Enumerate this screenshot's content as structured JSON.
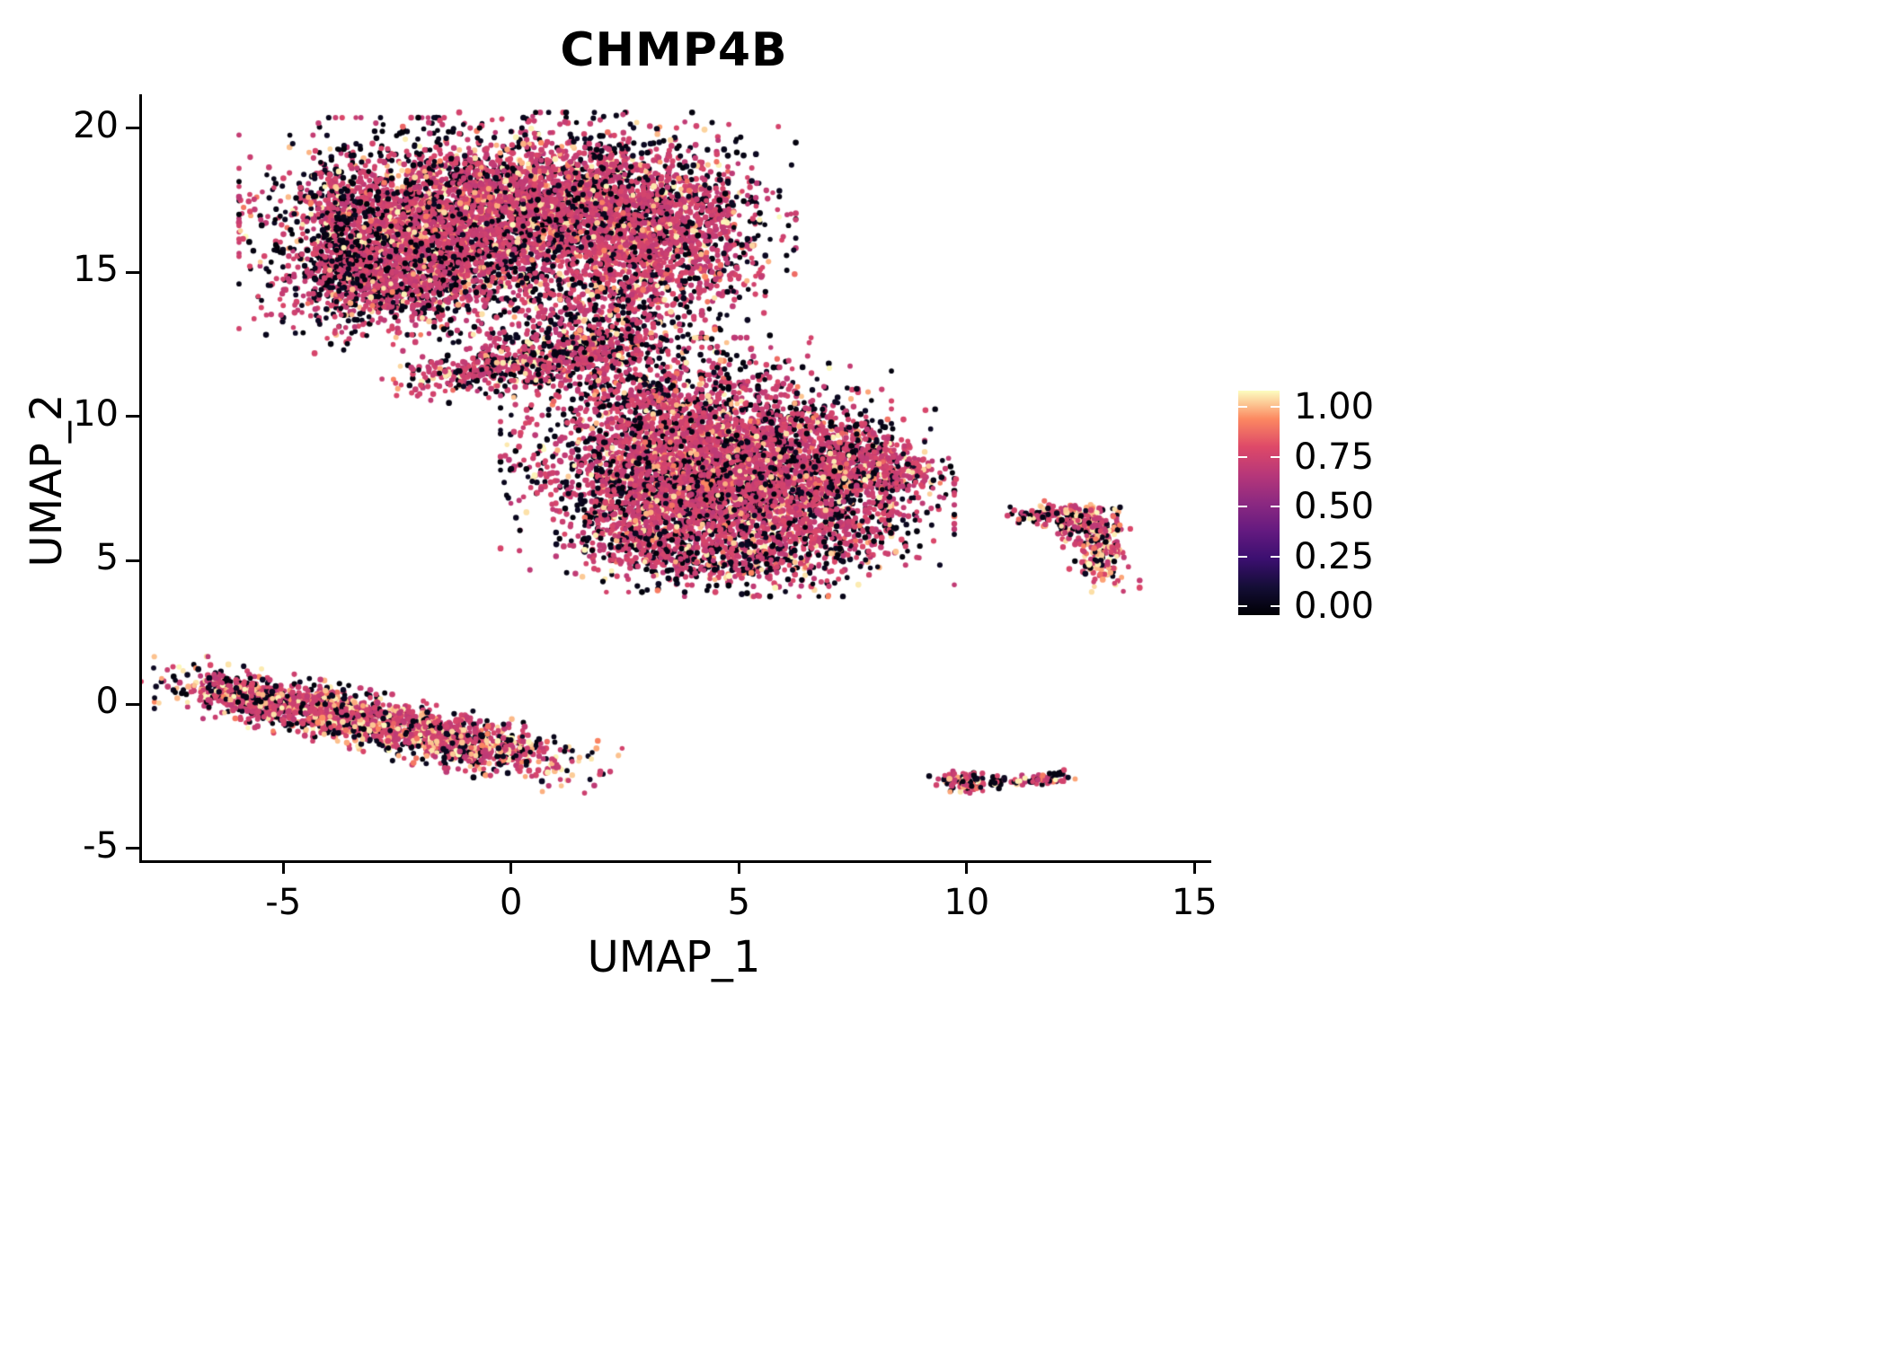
{
  "chart_data": {
    "type": "scatter",
    "title": "CHMP4B",
    "xlabel": "UMAP_1",
    "ylabel": "UMAP_2",
    "xlim": [
      -8.16,
      15.31
    ],
    "ylim": [
      -5.41,
      21.18
    ],
    "x_ticks": [
      -5,
      0,
      5,
      10,
      15
    ],
    "y_ticks": [
      -5,
      0,
      5,
      10,
      15,
      20
    ],
    "grid": false,
    "point_radius_px": [
      2.7,
      3.4
    ],
    "colorbar": {
      "position": "right",
      "colormap": "magma",
      "stops": [
        [
          0,
          "#000004"
        ],
        [
          0.125,
          "#140e36"
        ],
        [
          0.25,
          "#3b0f70"
        ],
        [
          0.375,
          "#641a80"
        ],
        [
          0.5,
          "#8c2981"
        ],
        [
          0.625,
          "#b73779"
        ],
        [
          0.75,
          "#de4968"
        ],
        [
          0.875,
          "#fc8961"
        ],
        [
          1,
          "#fcfdbf"
        ]
      ],
      "tick_labels": [
        "1.00",
        "0.75",
        "0.50",
        "0.25",
        "0.00"
      ],
      "tick_values": [
        1.0,
        0.75,
        0.5,
        0.25,
        0.0
      ]
    },
    "value_bins": {
      "black": [
        0.01,
        0.08
      ],
      "rose": [
        0.64,
        0.74
      ],
      "orange": [
        0.8,
        0.88
      ],
      "cream": [
        0.9,
        1.0
      ]
    },
    "clusters": [
      {
        "x": -2.0,
        "y": 16.6,
        "sx": 1.55,
        "sy": 1.45,
        "rot": 0,
        "n": 2600,
        "mix": {
          "black": 0.13,
          "rose": 0.72,
          "orange": 0.04,
          "cream": 0.11,
          "edge": 0.3
        }
      },
      {
        "x": 0.8,
        "y": 17.3,
        "sx": 1.5,
        "sy": 1.25,
        "rot": 0,
        "n": 2200,
        "mix": {
          "black": 0.13,
          "rose": 0.73,
          "orange": 0.04,
          "cream": 0.1,
          "edge": 0.25
        }
      },
      {
        "x": 3.2,
        "y": 16.3,
        "sx": 1.15,
        "sy": 1.5,
        "rot": 0,
        "n": 1500,
        "mix": {
          "black": 0.15,
          "rose": 0.72,
          "orange": 0.04,
          "cream": 0.09,
          "edge": 0.3
        }
      },
      {
        "x": -2.5,
        "y": 14.5,
        "sx": 1.2,
        "sy": 0.75,
        "rot": 10,
        "n": 650,
        "mix": {
          "black": 0.2,
          "rose": 0.68,
          "orange": 0.03,
          "cream": 0.09,
          "edge": 0.2
        }
      },
      {
        "x": -3.75,
        "y": 15.9,
        "sx": 0.3,
        "sy": 1.3,
        "rot": 0,
        "n": 280,
        "mix": {
          "black": 0.5,
          "rose": 0.38,
          "orange": 0.02,
          "cream": 0.1,
          "edge": 0
        }
      },
      {
        "x": 1.4,
        "y": 13.4,
        "sx": 1.05,
        "sy": 0.95,
        "rot": 0,
        "n": 480,
        "mix": {
          "black": 0.32,
          "rose": 0.58,
          "orange": 0.03,
          "cream": 0.07,
          "edge": 0
        }
      },
      {
        "x": 0.1,
        "y": 11.8,
        "sx": 1.3,
        "sy": 0.38,
        "rot": 12,
        "n": 520,
        "mix": {
          "black": 0.25,
          "rose": 0.64,
          "orange": 0.03,
          "cream": 0.08,
          "edge": 0
        }
      },
      {
        "x": 2.6,
        "y": 11.4,
        "sx": 1.1,
        "sy": 0.9,
        "rot": -20,
        "n": 240,
        "mix": {
          "black": 0.35,
          "rose": 0.55,
          "orange": 0.03,
          "cream": 0.07,
          "edge": 0
        }
      },
      {
        "x": 4.0,
        "y": 8.7,
        "sx": 1.65,
        "sy": 1.55,
        "rot": 0,
        "n": 3100,
        "mix": {
          "black": 0.15,
          "rose": 0.73,
          "orange": 0.04,
          "cream": 0.08,
          "edge": 0.25
        }
      },
      {
        "x": 5.9,
        "y": 7.0,
        "sx": 1.45,
        "sy": 1.25,
        "rot": 0,
        "n": 1700,
        "mix": {
          "black": 0.17,
          "rose": 0.7,
          "orange": 0.04,
          "cream": 0.09,
          "edge": 0.25
        }
      },
      {
        "x": 3.1,
        "y": 6.5,
        "sx": 1.0,
        "sy": 1.0,
        "rot": 0,
        "n": 650,
        "mix": {
          "black": 0.18,
          "rose": 0.7,
          "orange": 0.03,
          "cream": 0.09,
          "edge": 0.2
        }
      },
      {
        "x": 8.3,
        "y": 8.1,
        "sx": 0.55,
        "sy": 0.42,
        "rot": -15,
        "n": 220,
        "mix": {
          "black": 0.2,
          "rose": 0.68,
          "orange": 0.03,
          "cream": 0.09,
          "edge": 0
        }
      },
      {
        "x": 7.2,
        "y": 8.6,
        "sx": 0.7,
        "sy": 0.75,
        "rot": 0,
        "n": 380,
        "mix": {
          "black": 0.18,
          "rose": 0.7,
          "orange": 0.04,
          "cream": 0.08,
          "edge": 0.2
        }
      },
      {
        "x": 4.7,
        "y": 5.0,
        "sx": 1.5,
        "sy": 0.45,
        "rot": 0,
        "n": 330,
        "mix": {
          "black": 0.42,
          "rose": 0.48,
          "orange": 0.02,
          "cream": 0.08,
          "edge": 0
        }
      },
      {
        "x": -4.5,
        "y": -0.15,
        "sx": 1.55,
        "sy": 0.4,
        "rot": -18,
        "n": 950,
        "mix": {
          "black": 0.18,
          "rose": 0.56,
          "orange": 0.06,
          "cream": 0.2,
          "edge": 0.1
        }
      },
      {
        "x": -1.6,
        "y": -1.15,
        "sx": 1.5,
        "sy": 0.42,
        "rot": -18,
        "n": 950,
        "mix": {
          "black": 0.18,
          "rose": 0.57,
          "orange": 0.06,
          "cream": 0.19,
          "edge": 0.1
        }
      },
      {
        "x": -5.9,
        "y": 0.3,
        "sx": 0.45,
        "sy": 0.28,
        "rot": -18,
        "n": 240,
        "mix": {
          "black": 0.22,
          "rose": 0.55,
          "orange": 0.05,
          "cream": 0.18,
          "edge": 0
        }
      },
      {
        "x": 12.5,
        "y": 6.35,
        "sx": 0.45,
        "sy": 0.3,
        "rot": -10,
        "n": 190,
        "mix": {
          "black": 0.24,
          "rose": 0.46,
          "orange": 0.08,
          "cream": 0.22,
          "edge": 0
        }
      },
      {
        "x": 12.85,
        "y": 5.15,
        "sx": 0.28,
        "sy": 0.5,
        "rot": 10,
        "n": 170,
        "mix": {
          "black": 0.24,
          "rose": 0.46,
          "orange": 0.08,
          "cream": 0.22,
          "edge": 0
        }
      },
      {
        "x": 11.45,
        "y": 6.5,
        "sx": 0.28,
        "sy": 0.15,
        "rot": 0,
        "n": 45,
        "mix": {
          "black": 0.3,
          "rose": 0.5,
          "orange": 0.05,
          "cream": 0.15,
          "edge": 0
        }
      },
      {
        "x": 9.95,
        "y": -2.7,
        "sx": 0.32,
        "sy": 0.17,
        "rot": 0,
        "n": 120,
        "mix": {
          "black": 0.3,
          "rose": 0.5,
          "orange": 0.05,
          "cream": 0.15,
          "edge": 0
        }
      },
      {
        "x": 11.65,
        "y": -2.6,
        "sx": 0.33,
        "sy": 0.11,
        "rot": 5,
        "n": 70,
        "mix": {
          "black": 0.3,
          "rose": 0.52,
          "orange": 0.05,
          "cream": 0.13,
          "edge": 0
        }
      },
      {
        "x": 10.7,
        "y": -2.62,
        "sx": 0.07,
        "sy": 0.05,
        "rot": 0,
        "n": 5,
        "mix": {
          "black": 0.5,
          "rose": 0.4,
          "orange": 0,
          "cream": 0.1,
          "edge": 0
        }
      },
      {
        "x": 6.85,
        "y": 3.7,
        "sx": 0.04,
        "sy": 0.04,
        "rot": 0,
        "n": 2,
        "mix": {
          "black": 0,
          "rose": 0,
          "orange": 0.6,
          "cream": 0.4,
          "edge": 0
        }
      }
    ]
  }
}
